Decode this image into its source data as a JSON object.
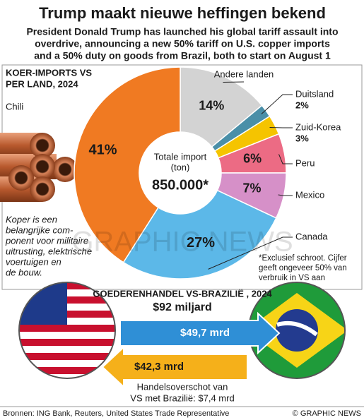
{
  "header": {
    "title": "Trump maakt nieuwe heffingen bekend",
    "subtitle_lines": [
      "President Donald Trump has launched his global tariff assault into",
      "overdrive, announcing a new 50% tariff on U.S. copper imports",
      "and a 50% duty on goods from Brazil, both to start on August 1"
    ]
  },
  "chart_data": {
    "type": "pie",
    "title_lines": [
      "KOER-IMPORTS VS",
      "PER LAND, 2024"
    ],
    "categories": [
      "Andere landen",
      "Duitsland",
      "Zuid-Korea",
      "Peru",
      "Mexico",
      "Canada",
      "Chili"
    ],
    "values": [
      14,
      2,
      3,
      6,
      7,
      27,
      41
    ],
    "value_labels": [
      "14%",
      "2%",
      "3%",
      "6%",
      "7%",
      "27%",
      "41%"
    ],
    "colors": [
      "#d3d3d3",
      "#4a8fa8",
      "#f5c400",
      "#ec6b84",
      "#d690c8",
      "#5cb8e8",
      "#f07a22"
    ],
    "center_label_lines": [
      "Totale import",
      "(ton)"
    ],
    "center_value": "850.000*",
    "footnote_lines": [
      "*Exclusief schroot. Cijfer",
      "geeft ongeveer 50% van",
      "verbruik in VS aan"
    ]
  },
  "copper_note_lines": [
    "Koper is een",
    "belangrijke com-",
    "ponent voor militaire",
    "uitrusting, elektrische",
    "voertuigen en",
    "de bouw."
  ],
  "trade": {
    "title": "GOEDERENHANDEL VS-BRAZILIË , 2024",
    "total": "$92 miljard",
    "us_to_brazil": "$49,7 mrd",
    "brazil_to_us": "$42,3 mrd",
    "surplus_lines": [
      "Handelsoverschot van",
      "VS met Brazilië: $7,4 mrd"
    ]
  },
  "footer": {
    "sources": "Bronnen: ING Bank, Reuters, United States Trade Representative",
    "credit": "© GRAPHIC NEWS"
  },
  "watermark": "GRAPHIC NEWS"
}
